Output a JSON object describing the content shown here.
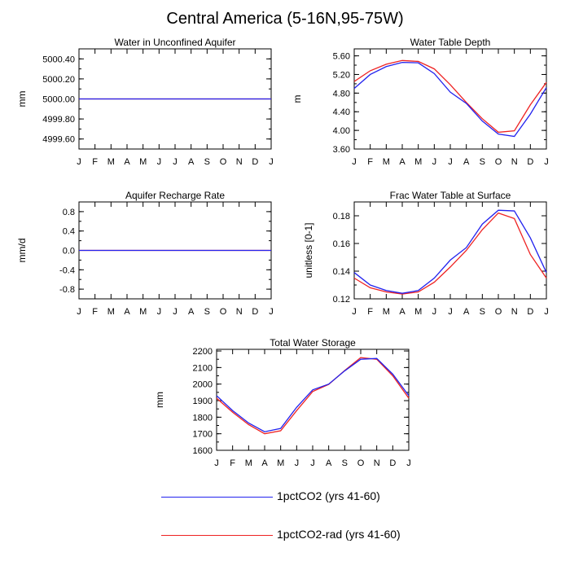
{
  "figure": {
    "title": "Central America (5-16N,95-75W)"
  },
  "legend": {
    "entries": [
      {
        "label": "1pctCO2 (yrs 41-60)",
        "color": "#2222ee"
      },
      {
        "label": "1pctCO2-rad (yrs 41-60)",
        "color": "#ee2222"
      }
    ]
  },
  "chart_data": [
    {
      "type": "line",
      "title": "Water in Unconfined Aquifer",
      "ylabel": "mm",
      "xticks": [
        "J",
        "F",
        "M",
        "A",
        "M",
        "J",
        "J",
        "A",
        "S",
        "O",
        "N",
        "D",
        "J"
      ],
      "ylim": [
        4999.5,
        5000.5
      ],
      "yticks": [
        4999.6,
        4999.8,
        5000.0,
        5000.2,
        5000.4
      ],
      "ytick_labels": [
        "4999.60",
        "4999.80",
        "5000.00",
        "5000.20",
        "5000.40"
      ],
      "series": [
        {
          "name": "1pctCO2 (yrs 41-60)",
          "color": "#2222ee",
          "values": [
            5000,
            5000,
            5000,
            5000,
            5000,
            5000,
            5000,
            5000,
            5000,
            5000,
            5000,
            5000,
            5000
          ]
        },
        {
          "name": "1pctCO2-rad (yrs 41-60)",
          "color": "#ee2222",
          "values": [
            5000,
            5000,
            5000,
            5000,
            5000,
            5000,
            5000,
            5000,
            5000,
            5000,
            5000,
            5000,
            5000
          ]
        }
      ]
    },
    {
      "type": "line",
      "title": "Water Table Depth",
      "ylabel": "m",
      "xticks": [
        "J",
        "F",
        "M",
        "A",
        "M",
        "J",
        "J",
        "A",
        "S",
        "O",
        "N",
        "D",
        "J"
      ],
      "ylim": [
        3.6,
        5.75
      ],
      "yticks": [
        3.6,
        4.0,
        4.4,
        4.8,
        5.2,
        5.6
      ],
      "ytick_labels": [
        "3.60",
        "4.00",
        "4.40",
        "4.80",
        "5.20",
        "5.60"
      ],
      "series": [
        {
          "name": "1pctCO2 (yrs 41-60)",
          "color": "#2222ee",
          "values": [
            4.9,
            5.2,
            5.37,
            5.46,
            5.45,
            5.22,
            4.82,
            4.58,
            4.2,
            3.92,
            3.87,
            4.35,
            4.92
          ]
        },
        {
          "name": "1pctCO2-rad (yrs 41-60)",
          "color": "#ee2222",
          "values": [
            5.05,
            5.28,
            5.42,
            5.5,
            5.48,
            5.32,
            4.98,
            4.6,
            4.25,
            3.96,
            3.99,
            4.55,
            5.03
          ]
        }
      ]
    },
    {
      "type": "line",
      "title": "Aquifer Recharge Rate",
      "ylabel": "mm/d",
      "xticks": [
        "J",
        "F",
        "M",
        "A",
        "M",
        "J",
        "J",
        "A",
        "S",
        "O",
        "N",
        "D",
        "J"
      ],
      "ylim": [
        -1.0,
        1.0
      ],
      "yticks": [
        -0.8,
        -0.4,
        0.0,
        0.4,
        0.8
      ],
      "ytick_labels": [
        "-0.8",
        "-0.4",
        "0.0",
        "0.4",
        "0.8"
      ],
      "series": [
        {
          "name": "1pctCO2 (yrs 41-60)",
          "color": "#2222ee",
          "values": [
            0,
            0,
            0,
            0,
            0,
            0,
            0,
            0,
            0,
            0,
            0,
            0,
            0
          ]
        },
        {
          "name": "1pctCO2-rad (yrs 41-60)",
          "color": "#ee2222",
          "values": [
            0,
            0,
            0,
            0,
            0,
            0,
            0,
            0,
            0,
            0,
            0,
            0,
            0
          ]
        }
      ]
    },
    {
      "type": "line",
      "title": "Frac Water Table at Surface",
      "ylabel": "unitless [0-1]",
      "xticks": [
        "J",
        "F",
        "M",
        "A",
        "M",
        "J",
        "J",
        "A",
        "S",
        "O",
        "N",
        "D",
        "J"
      ],
      "ylim": [
        0.12,
        0.19
      ],
      "yticks": [
        0.12,
        0.14,
        0.16,
        0.18
      ],
      "ytick_labels": [
        "0.12",
        "0.14",
        "0.16",
        "0.18"
      ],
      "series": [
        {
          "name": "1pctCO2 (yrs 41-60)",
          "color": "#2222ee",
          "values": [
            0.139,
            0.13,
            0.126,
            0.124,
            0.126,
            0.135,
            0.148,
            0.157,
            0.174,
            0.184,
            0.1835,
            0.164,
            0.139
          ]
        },
        {
          "name": "1pctCO2-rad (yrs 41-60)",
          "color": "#ee2222",
          "values": [
            0.135,
            0.128,
            0.125,
            0.1235,
            0.125,
            0.132,
            0.143,
            0.155,
            0.17,
            0.182,
            0.178,
            0.152,
            0.135
          ]
        }
      ]
    },
    {
      "type": "line",
      "title": "Total Water Storage",
      "ylabel": "mm",
      "xticks": [
        "J",
        "F",
        "M",
        "A",
        "M",
        "J",
        "J",
        "A",
        "S",
        "O",
        "N",
        "D",
        "J"
      ],
      "ylim": [
        1600,
        2210
      ],
      "yticks": [
        1600,
        1700,
        1800,
        1900,
        2000,
        2100,
        2200
      ],
      "ytick_labels": [
        "1600",
        "1700",
        "1800",
        "1900",
        "2000",
        "2100",
        "2200"
      ],
      "series": [
        {
          "name": "1pctCO2 (yrs 41-60)",
          "color": "#2222ee",
          "values": [
            1930,
            1840,
            1765,
            1712,
            1732,
            1860,
            1965,
            2000,
            2080,
            2150,
            2155,
            2060,
            1930
          ]
        },
        {
          "name": "1pctCO2-rad (yrs 41-60)",
          "color": "#ee2222",
          "values": [
            1915,
            1830,
            1755,
            1700,
            1718,
            1840,
            1955,
            1998,
            2082,
            2160,
            2150,
            2050,
            1915
          ]
        }
      ]
    }
  ]
}
